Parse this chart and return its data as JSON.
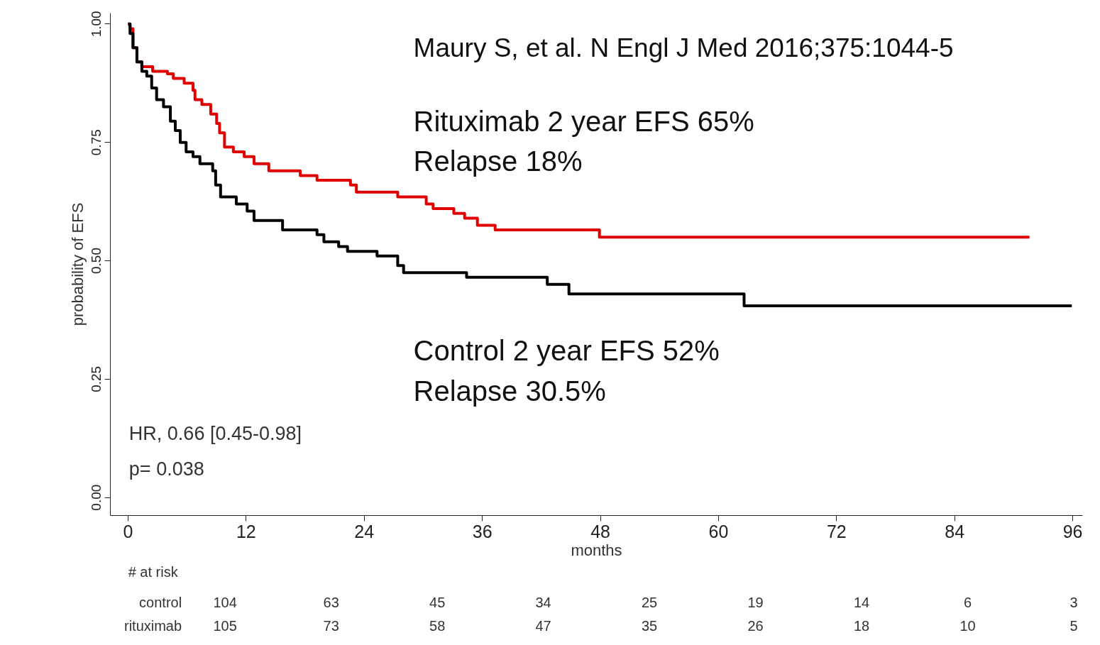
{
  "chart_data": [
    {
      "type": "step",
      "xlabel": "months",
      "ylabel": "probability of EFS",
      "xlim": [
        -1.8,
        97.0
      ],
      "xticks": [
        0,
        12,
        24,
        36,
        48,
        60,
        72,
        84,
        96
      ],
      "ylim": [
        -0.038,
        1.023
      ],
      "yticks": [
        {
          "value": 0,
          "label": "0.00"
        },
        {
          "value": 0.25,
          "label": "0.25"
        },
        {
          "value": 0.5,
          "label": "0.50"
        },
        {
          "value": 0.75,
          "label": "0.75"
        },
        {
          "value": 1.0,
          "label": "1.00"
        }
      ],
      "grid": false,
      "series": [
        {
          "color": "#e00000",
          "x": [
            0,
            0.2,
            0.5,
            0.9,
            1.4,
            2.5,
            4.0,
            4.6,
            5.7,
            6.6,
            6.8,
            7.5,
            8.4,
            9.0,
            9.3,
            9.8,
            10.7,
            11.8,
            12.8,
            14.3,
            17.5,
            19.2,
            22.6,
            23.2,
            27.4,
            30.3,
            31.0,
            33.1,
            34.2,
            35.5,
            37.3,
            47.9,
            91.6
          ],
          "values": [
            1.0,
            0.99,
            0.95,
            0.92,
            0.91,
            0.9,
            0.895,
            0.885,
            0.875,
            0.86,
            0.84,
            0.83,
            0.81,
            0.79,
            0.77,
            0.74,
            0.73,
            0.72,
            0.705,
            0.69,
            0.68,
            0.67,
            0.66,
            0.645,
            0.635,
            0.62,
            0.61,
            0.6,
            0.59,
            0.575,
            0.565,
            0.55,
            0.55
          ]
        },
        {
          "color": "#000000",
          "x": [
            0,
            0.2,
            0.5,
            0.9,
            1.4,
            1.9,
            2.4,
            2.9,
            3.6,
            4.3,
            4.8,
            5.3,
            5.9,
            6.6,
            7.3,
            8.6,
            8.9,
            9.4,
            11.0,
            12.1,
            12.8,
            15.7,
            19.2,
            19.9,
            21.4,
            22.3,
            25.3,
            27.4,
            28.0,
            34.4,
            42.6,
            44.8,
            62.6,
            95.9
          ],
          "values": [
            1.0,
            0.98,
            0.95,
            0.92,
            0.9,
            0.89,
            0.865,
            0.84,
            0.825,
            0.795,
            0.775,
            0.75,
            0.73,
            0.72,
            0.705,
            0.69,
            0.66,
            0.635,
            0.62,
            0.605,
            0.585,
            0.565,
            0.555,
            0.54,
            0.53,
            0.52,
            0.51,
            0.49,
            0.475,
            0.465,
            0.45,
            0.43,
            0.405,
            0.405
          ]
        }
      ],
      "annotations": [
        "Maury S, et al. N Engl J Med 2016;375:1044-5",
        "Rituximab  2 year EFS 65%",
        "Relapse 18%",
        "Control 2 year EFS 52%",
        "Relapse 30.5%",
        "HR, 0.66 [0.45-0.98]",
        "p= 0.038",
        "# at risk",
        "control",
        "rituximab",
        "104",
        "63",
        "45",
        "34",
        "25",
        "19",
        "14",
        "6",
        "3",
        "105",
        "73",
        "58",
        "47",
        "35",
        "26",
        "18",
        "10",
        "5"
      ]
    }
  ]
}
